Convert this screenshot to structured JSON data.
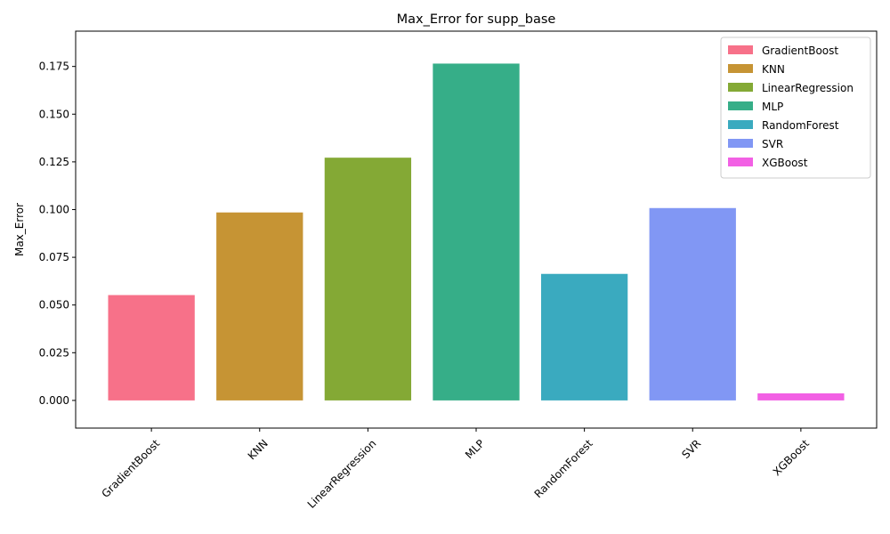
{
  "chart_data": {
    "type": "bar",
    "title": "Max_Error for supp_base",
    "xlabel": "",
    "ylabel": "Max_Error",
    "categories": [
      "GradientBoost",
      "KNN",
      "LinearRegression",
      "MLP",
      "RandomForest",
      "SVR",
      "XGBoost"
    ],
    "values": [
      0.0552,
      0.0985,
      0.1272,
      0.1765,
      0.0663,
      0.1008,
      0.0037
    ],
    "colors": [
      "#f77189",
      "#c69434",
      "#84a935",
      "#36ae88",
      "#3aaabf",
      "#8197f4",
      "#f260e4"
    ],
    "ylim": [
      -0.0145,
      0.1935
    ],
    "yticks": [
      0.0,
      0.025,
      0.05,
      0.075,
      0.1,
      0.125,
      0.15,
      0.175
    ],
    "ytick_labels": [
      "0.000",
      "0.025",
      "0.050",
      "0.075",
      "0.100",
      "0.125",
      "0.150",
      "0.175"
    ],
    "legend_placement": "top-right",
    "grid": false
  }
}
